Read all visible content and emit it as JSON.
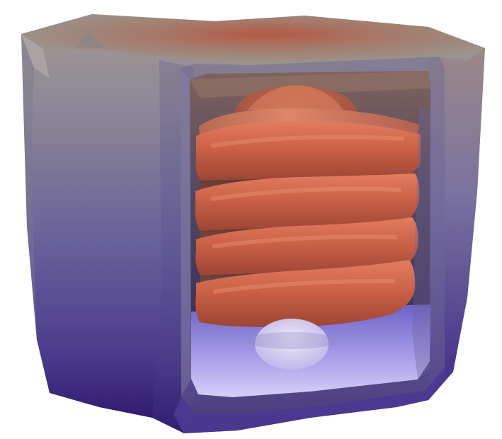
{
  "scene": {
    "subject": "sectioned-inductor-housing-with-copper-coil",
    "shading": "thermal-gradient",
    "colors": {
      "background": "#ffffff",
      "housing_top": "#9a8b83",
      "housing_mid": "#77708a",
      "housing_bottom": "#3a237c",
      "hot_core": "#b85a43",
      "coil": "#cc6146",
      "coil_shadow": "#6b3b35",
      "cavity_glow": "#bdb2ee"
    }
  }
}
